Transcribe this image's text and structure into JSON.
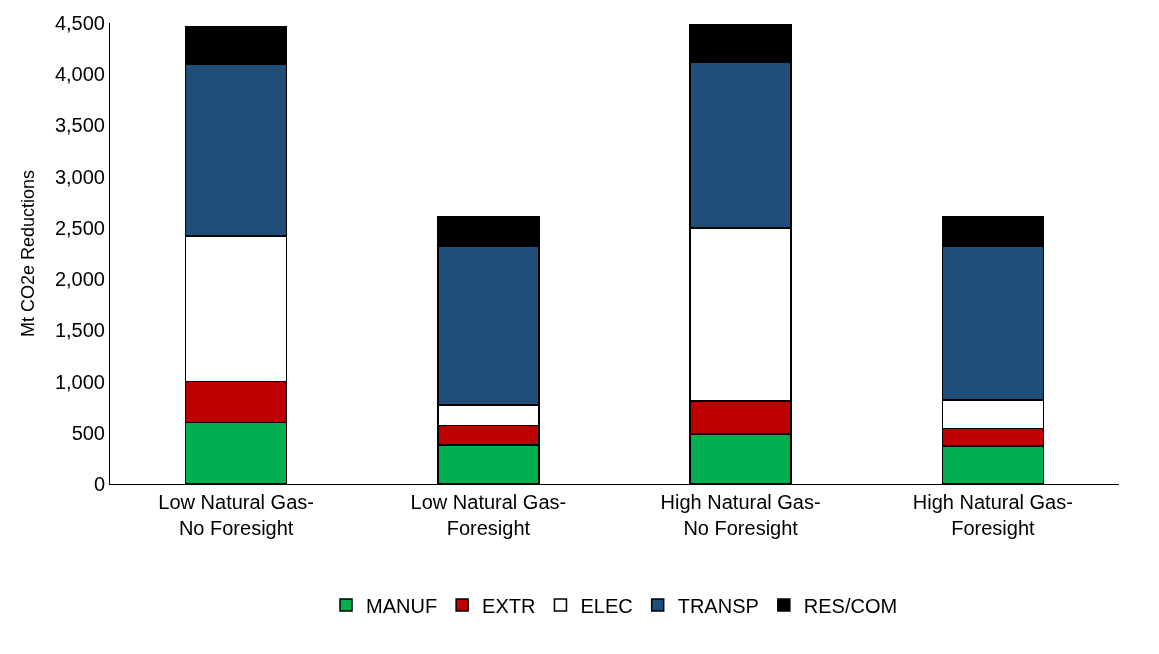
{
  "chart_data": {
    "type": "bar",
    "stacked": true,
    "ylabel": "Mt CO2e Reductions",
    "categories": [
      "Low Natural Gas-\nNo Foresight",
      "Low Natural Gas-\nForesight",
      "High Natural Gas-\nNo Foresight",
      "High Natural Gas-\nForesight"
    ],
    "series": [
      {
        "name": "MANUF",
        "color": "#00b050",
        "values": [
          600,
          380,
          490,
          370
        ]
      },
      {
        "name": "EXTR",
        "color": "#c00000",
        "values": [
          400,
          190,
          320,
          170
        ]
      },
      {
        "name": "ELEC",
        "color": "#ffffff",
        "values": [
          1420,
          200,
          1690,
          280
        ]
      },
      {
        "name": "TRANSP",
        "color": "#1f4e79",
        "values": [
          1680,
          1550,
          1620,
          1500
        ]
      },
      {
        "name": "RES/COM",
        "color": "#000000",
        "values": [
          360,
          290,
          360,
          290
        ]
      }
    ],
    "ylim": [
      0,
      4500
    ],
    "yticks": [
      {
        "value": 0,
        "label": "0"
      },
      {
        "value": 500,
        "label": "500"
      },
      {
        "value": 1000,
        "label": "1,000"
      },
      {
        "value": 1500,
        "label": "1,500"
      },
      {
        "value": 2000,
        "label": "2,000"
      },
      {
        "value": 2500,
        "label": "2,500"
      },
      {
        "value": 3000,
        "label": "3,000"
      },
      {
        "value": 3500,
        "label": "3,500"
      },
      {
        "value": 4000,
        "label": "4,000"
      },
      {
        "value": 4500,
        "label": "4,500"
      }
    ],
    "legend": "bottom"
  }
}
